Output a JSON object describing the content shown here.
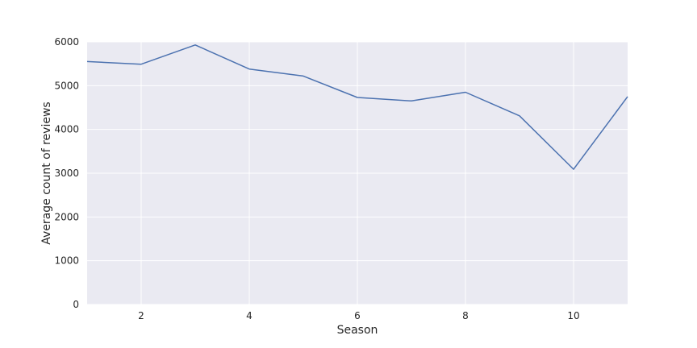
{
  "chart_data": {
    "type": "line",
    "title": "",
    "xlabel": "Season",
    "ylabel": "Average count of reviews",
    "xlim": [
      1,
      11
    ],
    "ylim": [
      0,
      6000
    ],
    "x_ticks": [
      2,
      4,
      6,
      8,
      10
    ],
    "y_ticks": [
      0,
      1000,
      2000,
      3000,
      4000,
      5000,
      6000
    ],
    "grid": true,
    "background_color": "#eaeaf2",
    "grid_color": "#ffffff",
    "series": [
      {
        "color": "#4c72b0",
        "x": [
          1,
          2,
          3,
          4,
          5,
          6,
          7,
          8,
          9,
          10,
          11
        ],
        "values": [
          5550,
          5490,
          5930,
          5380,
          5220,
          4730,
          4650,
          4850,
          4310,
          3090,
          4750
        ]
      }
    ]
  }
}
